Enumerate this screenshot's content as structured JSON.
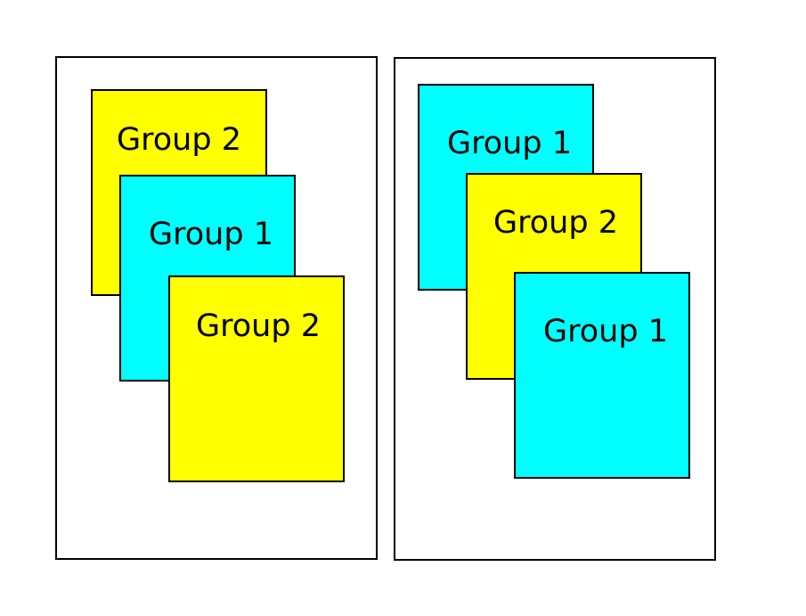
{
  "colors": {
    "group1": "#00ffff",
    "group2": "#ffff00",
    "border": "#000000",
    "background": "#ffffff"
  },
  "panels": [
    {
      "cards": [
        {
          "label": "Group 2",
          "group": "group2"
        },
        {
          "label": "Group 1",
          "group": "group1"
        },
        {
          "label": "Group 2",
          "group": "group2"
        }
      ]
    },
    {
      "cards": [
        {
          "label": "Group 1",
          "group": "group1"
        },
        {
          "label": "Group 2",
          "group": "group2"
        },
        {
          "label": "Group 1",
          "group": "group1"
        }
      ]
    }
  ]
}
